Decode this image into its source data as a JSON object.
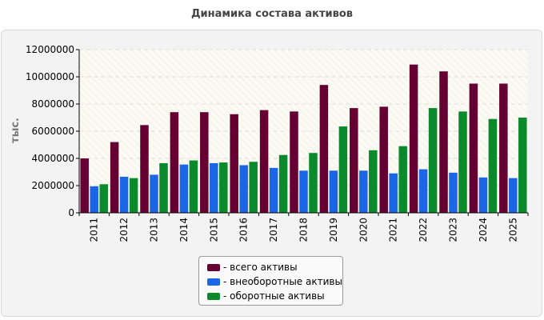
{
  "chart_data": {
    "type": "bar",
    "title": "Динамика состава активов",
    "ylabel": "тыс.",
    "xlabel": "",
    "ylim": [
      0,
      12000000
    ],
    "yticks": [
      "0",
      "2000000",
      "4000000",
      "6000000",
      "8000000",
      "10000000",
      "12000000"
    ],
    "grid": true,
    "legend_position": "bottom",
    "categories": [
      "2011",
      "2012",
      "2013",
      "2014",
      "2015",
      "2016",
      "2017",
      "2018",
      "2019",
      "2020",
      "2021",
      "2022",
      "2023",
      "2024",
      "2025"
    ],
    "series": [
      {
        "name": "- всего активы",
        "color": "#660033",
        "values": [
          4000000,
          5200000,
          6450000,
          7400000,
          7400000,
          7250000,
          7550000,
          7450000,
          9400000,
          7700000,
          7800000,
          10900000,
          10400000,
          9500000,
          9500000
        ]
      },
      {
        "name": "- внеоборотные активы",
        "color": "#1a66e6",
        "values": [
          1950000,
          2650000,
          2800000,
          3550000,
          3650000,
          3500000,
          3300000,
          3100000,
          3100000,
          3100000,
          2900000,
          3200000,
          2950000,
          2600000,
          2550000
        ]
      },
      {
        "name": "- оборотные активы",
        "color": "#0a8a2a",
        "values": [
          2100000,
          2550000,
          3650000,
          3850000,
          3700000,
          3750000,
          4250000,
          4400000,
          6350000,
          4600000,
          4900000,
          7700000,
          7450000,
          6900000,
          7000000
        ]
      }
    ]
  }
}
